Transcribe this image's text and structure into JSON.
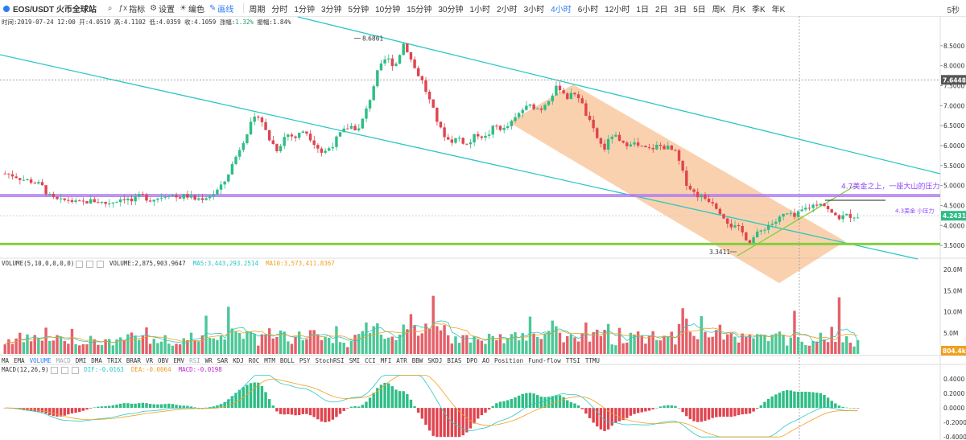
{
  "toolbar": {
    "pair": "EOS/USDT 火币全球站",
    "search_icon": "search-icon",
    "indicator_label": "指标",
    "settings_label": "设置",
    "theme_label": "编色",
    "draw_label": "画线",
    "period_label": "周期",
    "periods": [
      "分时",
      "1分钟",
      "3分钟",
      "5分钟",
      "10分钟",
      "15分钟",
      "30分钟",
      "1小时",
      "2小时",
      "3小时",
      "4小时",
      "6小时",
      "12小时",
      "1日",
      "2日",
      "3日",
      "5日",
      "周K",
      "月K",
      "季K",
      "年K"
    ],
    "active_period": "4小时",
    "refresh": "5秒"
  },
  "info": {
    "time": "时间:2019-07-24 12:00",
    "open": "开:4.0519",
    "high": "高:4.1102",
    "low": "低:4.0359",
    "close": "收:4.1059",
    "change_label": "涨幅:",
    "change": "1.32%",
    "amp": "振幅:1.84%"
  },
  "volume_header": {
    "name": "VOLUME(5,10,0,0,0,0)",
    "value": "VOLUME:2,875,903.9647",
    "ma5": "MA5:3,443,293.2514",
    "ma10": "MA10:3,573,411.8367"
  },
  "indicator_tabs": [
    "MA",
    "EMA",
    "VOLUME",
    "MACD",
    "DMI",
    "DMA",
    "TRIX",
    "BRAR",
    "VR",
    "OBV",
    "EMV",
    "RSI",
    "WR",
    "SAR",
    "KDJ",
    "ROC",
    "MTM",
    "BOLL",
    "PSY",
    "StochRSI",
    "SMI",
    "CCI",
    "MFI",
    "ATR",
    "BBW",
    "SKDJ",
    "BIAS",
    "DPO",
    "AO",
    "Position",
    "Fund-flow",
    "TTSI",
    "TTMU"
  ],
  "macd_header": {
    "name": "MACD(12,26,9)",
    "dif": "DIF:-0.0163",
    "dea": "DEA:-0.0064",
    "macd": "MACD:-0.0198"
  },
  "annotations": {
    "high": "8.6861",
    "low": "3.3411",
    "resistance_47": "4.7美金之上，一座大山的压力",
    "resistance_43": "4.3美金 小压力",
    "dashed_price": "7.6448",
    "last_price": "4.2431",
    "last_volume": "804.4k"
  },
  "colors": {
    "up": "#2ebd85",
    "down": "#e0444f",
    "channel": "#2cc7c4",
    "band": "#f7b27a",
    "resistance": "#b07cf0",
    "support": "#7ecf3a",
    "accent": "#2b7cf6"
  },
  "chart_data": [
    {
      "type": "candlestick",
      "title": "EOS/USDT 4小时",
      "ylim": [
        3.2,
        9.0
      ],
      "yticks": [
        "8.5000",
        "8.0000",
        "7.5000",
        "7.0000",
        "6.5000",
        "6.0000",
        "5.5000",
        "5.0000",
        "4.5000",
        "4.0000",
        "3.5000"
      ],
      "ytick_values": [
        8.5,
        8.0,
        7.5,
        7.0,
        6.5,
        6.0,
        5.5,
        5.0,
        4.5,
        4.0,
        3.5
      ],
      "close_path": [
        5.3,
        5.25,
        5.15,
        5.1,
        5.0,
        4.7,
        4.6,
        4.65,
        4.55,
        4.6,
        4.62,
        4.55,
        4.6,
        4.7,
        4.6,
        4.75,
        4.65,
        4.7,
        4.8,
        4.7,
        4.75,
        4.65,
        4.7,
        4.8,
        5.0,
        5.5,
        6.0,
        6.5,
        6.8,
        6.2,
        5.9,
        6.3,
        6.2,
        6.4,
        6.1,
        5.8,
        6.0,
        6.3,
        6.5,
        6.4,
        7.0,
        7.8,
        8.2,
        8.0,
        8.6,
        8.0,
        7.6,
        7.0,
        6.4,
        6.1,
        6.2,
        6.0,
        6.3,
        6.2,
        6.5,
        6.4,
        6.6,
        6.9,
        7.0,
        6.9,
        7.2,
        7.5,
        7.2,
        7.35,
        6.8,
        6.3,
        5.9,
        6.3,
        6.0,
        6.1,
        5.95,
        5.9,
        6.0,
        5.95,
        5.8,
        5.1,
        4.8,
        4.7,
        4.6,
        4.3,
        4.0,
        3.9,
        3.6,
        3.8,
        4.0,
        4.1,
        4.3,
        4.2,
        4.4,
        4.5,
        4.6,
        4.3,
        4.2,
        4.25,
        4.24
      ],
      "high": 8.6861,
      "low": 3.3411,
      "horizontal_lines": [
        4.77,
        4.73,
        3.55,
        3.52
      ],
      "dashed_level": 7.6448,
      "last": 4.2431
    },
    {
      "type": "bar",
      "title": "VOLUME",
      "yticks": [
        "20.0M",
        "15.0M",
        "10.0M",
        "5.0M"
      ],
      "ytick_values": [
        20,
        15,
        10,
        5
      ],
      "ylim": [
        0,
        20
      ]
    },
    {
      "type": "bar",
      "title": "MACD(12,26,9)",
      "yticks": [
        "0.4000",
        "0.2000",
        "0.0000",
        "-0.2000",
        "-0.4000"
      ],
      "ytick_values": [
        0.4,
        0.2,
        0.0,
        -0.2,
        -0.4
      ],
      "ylim": [
        -0.42,
        0.5
      ]
    }
  ]
}
